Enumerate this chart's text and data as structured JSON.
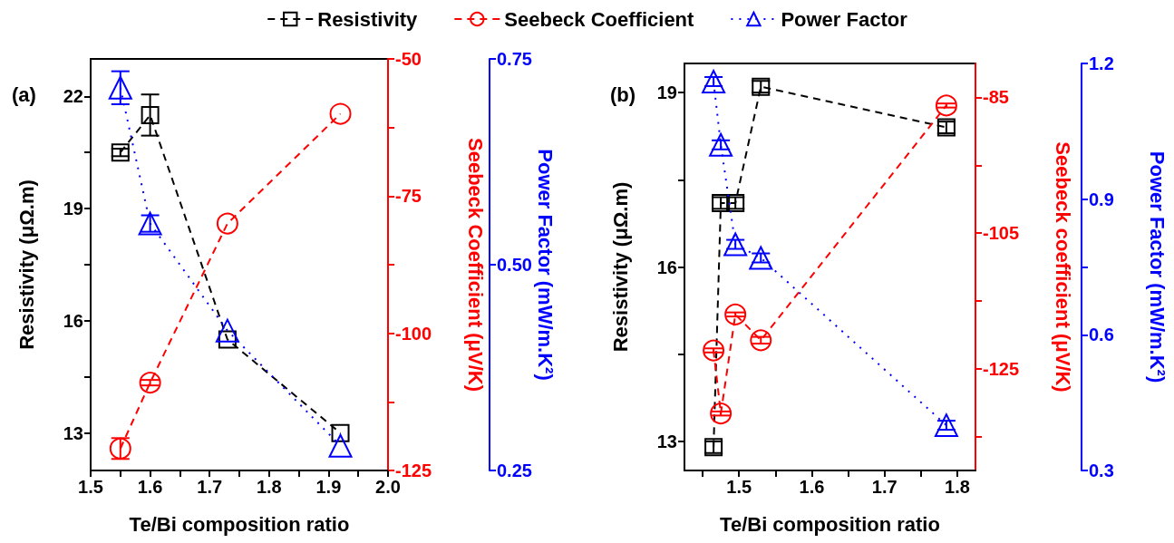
{
  "chart_data": [
    {
      "type": "line",
      "title": "(a)",
      "xlabel": "Te/Bi composition ratio",
      "ylabel": "Resistivity (μΩ.m)",
      "y2label": "Seebeck Coefficient (μV/K)",
      "y3label": "Power Factor (mW/m.K²)",
      "legend": "top",
      "x": [
        1.55,
        1.6,
        1.73,
        1.92
      ],
      "xlim": [
        1.5,
        2.0
      ],
      "xticks": [
        1.5,
        {
          "value": 1.55,
          "label": null
        },
        1.6,
        {
          "value": 1.65,
          "label": null
        },
        1.7,
        {
          "value": 1.75,
          "label": null
        },
        1.8,
        {
          "value": 1.85,
          "label": null
        },
        1.9,
        {
          "value": 1.95,
          "label": null
        },
        {
          "value": 2,
          "label": "2.0"
        }
      ],
      "ylim": [
        12,
        23
      ],
      "yticks": [
        13,
        {
          "value": 14.5,
          "label": null
        },
        16,
        {
          "value": 17.5,
          "label": null
        },
        19,
        {
          "value": 20.5,
          "label": null
        },
        22
      ],
      "y2lim": [
        -125,
        -50
      ],
      "y2ticks": [
        -125,
        {
          "value": -112.5,
          "label": null
        },
        -100,
        {
          "value": -87.5,
          "label": null
        },
        -75,
        {
          "value": -62.5,
          "label": null
        },
        -50
      ],
      "y3lim": [
        0.25,
        0.75
      ],
      "y3ticks": [
        0.25,
        {
          "value": 0.5,
          "label": "0.50"
        },
        0.75
      ],
      "series": [
        {
          "name": "Resistivity",
          "color": "#000000",
          "axis": "y",
          "marker": "square",
          "line_style": "dashed",
          "values": [
            20.5,
            21.5,
            15.5,
            13.0
          ],
          "errors": [
            0.1,
            0.55,
            null,
            null
          ]
        },
        {
          "name": "Seebeck Coefficient",
          "color": "#ff0000",
          "axis": "y2",
          "marker": "circle",
          "line_style": "dashed",
          "values": [
            -121,
            -109,
            -80,
            -60
          ],
          "errors": [
            1.9,
            0.5,
            null,
            null
          ]
        },
        {
          "name": "Power Factor",
          "color": "#0000ff",
          "axis": "y3",
          "marker": "triangle",
          "line_style": "dotted",
          "values": [
            0.715,
            0.55,
            0.42,
            0.28
          ],
          "errors": [
            0.02,
            0.01,
            null,
            null
          ]
        }
      ]
    },
    {
      "type": "line",
      "title": "(b)",
      "xlabel": "Te/Bi composition ratio",
      "ylabel": "Resistivity (μΩ.m)",
      "y2label": "Seebeck coefficient (μV/K)",
      "y3label": "Power Factor (mW/m.K²)",
      "x": [
        1.465,
        1.475,
        1.495,
        1.53,
        1.785
      ],
      "xlim": [
        1.425,
        1.825
      ],
      "xticks": [
        {
          "value": 1.45,
          "label": null
        },
        1.5,
        {
          "value": 1.55,
          "label": null
        },
        1.6,
        {
          "value": 1.65,
          "label": null
        },
        1.7,
        {
          "value": 1.75,
          "label": null
        },
        1.8
      ],
      "ylim": [
        12.5,
        19.5
      ],
      "yticks": [
        13,
        {
          "value": 14.5,
          "label": null
        },
        16,
        {
          "value": 17.5,
          "label": null
        },
        19
      ],
      "y2lim": [
        -140,
        -80
      ],
      "y2ticks": [
        {
          "value": -135,
          "label": null
        },
        -125,
        {
          "value": -115,
          "label": null
        },
        -105,
        {
          "value": -95,
          "label": null
        },
        -85
      ],
      "y3lim": [
        0.3,
        1.2
      ],
      "y3ticks": [
        0.3,
        0.6,
        {
          "value": 0.75,
          "label": null
        },
        0.9,
        1.2
      ],
      "series": [
        {
          "color": "#000000",
          "axis": "y",
          "marker": "square",
          "line_style": "dashed",
          "values": [
            12.9,
            17.1,
            17.1,
            19.1,
            18.4
          ],
          "errors": [
            0.1,
            0.1,
            0.1,
            0.1,
            0.1
          ]
        },
        {
          "color": "#ff0000",
          "axis": "y2",
          "marker": "circle",
          "line_style": "dashed",
          "values": [
            -122.3,
            -131.6,
            -117.0,
            -120.8,
            -86.2
          ],
          "errors": [
            0.3,
            0.3,
            0.3,
            0.5,
            0.3
          ]
        },
        {
          "color": "#0000ff",
          "axis": "y3",
          "marker": "triangle",
          "line_style": "dotted",
          "values": [
            1.16,
            1.02,
            0.8,
            0.77,
            0.4
          ],
          "errors": [
            0.01,
            0.01,
            0.01,
            0.01,
            0.01
          ]
        }
      ]
    }
  ]
}
